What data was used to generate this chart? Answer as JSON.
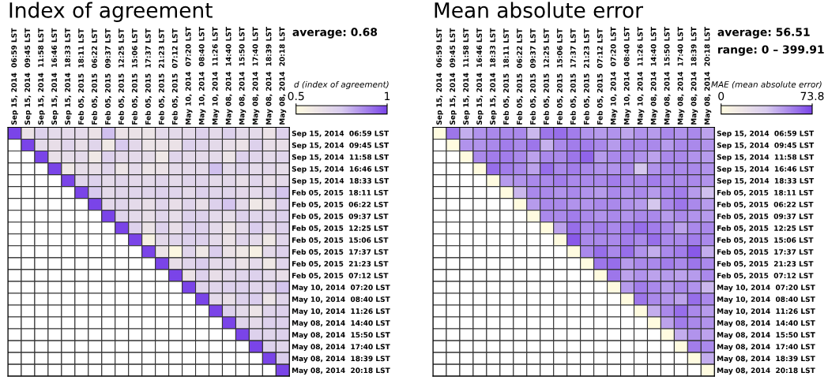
{
  "chart_data": [
    {
      "type": "heatmap",
      "title": "Index of agreement",
      "categories": [
        "Sep 15, 2014  06:59 LST",
        "Sep 15, 2014  09:45 LST",
        "Sep 15, 2014  11:58 LST",
        "Sep 15, 2014  16:46 LST",
        "Sep 15, 2014  18:33 LST",
        "Feb 05, 2015  18:11 LST",
        "Feb 05, 2015  06:22 LST",
        "Feb 05, 2015  09:37 LST",
        "Feb 05, 2015  12:25 LST",
        "Feb 05, 2015  15:06 LST",
        "Feb 05, 2015  17:37 LST",
        "Feb 05, 2015  21:23 LST",
        "Feb 05, 2015  07:12 LST",
        "May 10, 2014  07:20 LST",
        "May 10, 2014  08:40 LST",
        "May 10, 2014  11:26 LST",
        "May 08, 2014  14:40 LST",
        "May 08, 2014  15:50 LST",
        "May 08, 2014  17:40 LST",
        "May 08, 2014  18:39 LST",
        "May 08, 2014  20:18 LST"
      ],
      "y_categories": [
        "Sep 15, 2014  06:59 LST",
        "Sep 15, 2014  09:45 LST",
        "Sep 15, 2014  11:58 LST",
        "Sep 15, 2014  16:46 LST",
        "Sep 15, 2014  18:33 LST",
        "Feb 05, 2015  18:11 LST",
        "Feb 05, 2015  06:22 LST",
        "Feb 05, 2015  09:37 LST",
        "Feb 05, 2015  12:25 LST",
        "Feb 05, 2015  15:06 LST",
        "Feb 05, 2015  17:37 LST",
        "Feb 05, 2015  21:23 LST",
        "Feb 05, 2015  07:12 LST",
        "May 10, 2014  07:20 LST",
        "May 10, 2014  08:40 LST",
        "May 10, 2014  11:26 LST",
        "May 08, 2014  14:40 LST",
        "May 08, 2014  15:50 LST",
        "May 08, 2014  17:40 LST",
        "May 08, 2014  18:39 LST",
        "May 08, 2014  20:18 LST"
      ],
      "cells": [
        [
          1,
          0.63,
          0.72,
          0.67,
          0.67,
          0.67,
          0.63,
          0.77,
          0.63,
          0.63,
          0.62,
          0.67,
          0.67,
          0.67,
          0.72,
          0.67,
          0.72,
          0.67,
          0.67,
          0.63,
          0.72
        ],
        [
          null,
          1,
          0.67,
          0.65,
          0.7,
          0.65,
          0.7,
          0.6,
          0.75,
          0.68,
          0.62,
          0.63,
          0.63,
          0.72,
          0.7,
          0.67,
          0.65,
          0.63,
          0.72,
          0.65,
          0.65
        ],
        [
          null,
          null,
          1,
          0.64,
          0.66,
          0.67,
          0.6,
          0.72,
          0.68,
          0.67,
          0.66,
          0.6,
          0.7,
          0.67,
          0.67,
          0.67,
          0.62,
          0.72,
          0.7,
          0.67,
          0.7
        ],
        [
          null,
          null,
          null,
          1,
          0.6,
          0.66,
          0.65,
          0.7,
          0.62,
          0.67,
          0.62,
          0.63,
          0.67,
          0.67,
          0.67,
          0.77,
          0.67,
          0.7,
          0.67,
          0.68,
          0.66
        ],
        [
          null,
          null,
          null,
          null,
          1,
          0.7,
          0.72,
          0.67,
          0.7,
          0.68,
          0.67,
          0.7,
          0.67,
          0.7,
          0.7,
          0.67,
          0.68,
          0.65,
          0.7,
          0.65,
          0.67
        ],
        [
          null,
          null,
          null,
          null,
          null,
          1,
          0.75,
          0.67,
          0.7,
          0.7,
          0.7,
          0.72,
          0.7,
          0.67,
          0.72,
          0.7,
          0.7,
          0.68,
          0.67,
          0.7,
          0.76
        ],
        [
          null,
          null,
          null,
          null,
          null,
          null,
          1,
          0.68,
          0.7,
          0.67,
          0.65,
          0.7,
          0.65,
          0.7,
          0.65,
          0.72,
          0.76,
          0.67,
          0.6,
          0.63,
          0.72
        ],
        [
          null,
          null,
          null,
          null,
          null,
          null,
          null,
          1,
          0.7,
          0.67,
          0.65,
          0.7,
          0.66,
          0.72,
          0.72,
          0.67,
          0.66,
          0.72,
          0.7,
          0.7,
          0.72
        ],
        [
          null,
          null,
          null,
          null,
          null,
          null,
          null,
          null,
          1,
          0.72,
          0.63,
          0.72,
          0.65,
          0.72,
          0.72,
          0.67,
          0.62,
          0.67,
          0.74,
          0.67,
          0.72
        ],
        [
          null,
          null,
          null,
          null,
          null,
          null,
          null,
          null,
          null,
          1,
          0.55,
          0.68,
          0.7,
          0.72,
          0.72,
          0.67,
          0.63,
          0.7,
          0.67,
          0.6,
          0.7
        ],
        [
          null,
          null,
          null,
          null,
          null,
          null,
          null,
          null,
          null,
          null,
          1,
          0.62,
          0.52,
          0.7,
          0.6,
          0.74,
          0.63,
          0.6,
          0.56,
          0.67,
          0.72
        ],
        [
          null,
          null,
          null,
          null,
          null,
          null,
          null,
          null,
          null,
          null,
          null,
          1,
          0.65,
          0.7,
          0.74,
          0.67,
          0.67,
          0.63,
          0.67,
          0.6,
          0.7
        ],
        [
          null,
          null,
          null,
          null,
          null,
          null,
          null,
          null,
          null,
          null,
          null,
          null,
          1,
          0.63,
          0.72,
          0.65,
          0.68,
          0.7,
          0.72,
          0.67,
          0.65
        ],
        [
          null,
          null,
          null,
          null,
          null,
          null,
          null,
          null,
          null,
          null,
          null,
          null,
          null,
          1,
          0.7,
          0.7,
          0.72,
          0.72,
          0.7,
          0.7,
          0.76
        ],
        [
          null,
          null,
          null,
          null,
          null,
          null,
          null,
          null,
          null,
          null,
          null,
          null,
          null,
          null,
          1,
          0.67,
          0.65,
          0.72,
          0.74,
          0.62,
          0.7
        ],
        [
          null,
          null,
          null,
          null,
          null,
          null,
          null,
          null,
          null,
          null,
          null,
          null,
          null,
          null,
          null,
          1,
          0.72,
          0.67,
          0.62,
          0.7,
          0.72
        ],
        [
          null,
          null,
          null,
          null,
          null,
          null,
          null,
          null,
          null,
          null,
          null,
          null,
          null,
          null,
          null,
          null,
          1,
          0.7,
          0.67,
          0.72,
          0.72
        ],
        [
          null,
          null,
          null,
          null,
          null,
          null,
          null,
          null,
          null,
          null,
          null,
          null,
          null,
          null,
          null,
          null,
          null,
          1,
          0.72,
          0.7,
          0.72
        ],
        [
          null,
          null,
          null,
          null,
          null,
          null,
          null,
          null,
          null,
          null,
          null,
          null,
          null,
          null,
          null,
          null,
          null,
          null,
          1,
          0.72,
          0.7
        ],
        [
          null,
          null,
          null,
          null,
          null,
          null,
          null,
          null,
          null,
          null,
          null,
          null,
          null,
          null,
          null,
          null,
          null,
          null,
          null,
          1,
          0.74
        ],
        [
          null,
          null,
          null,
          null,
          null,
          null,
          null,
          null,
          null,
          null,
          null,
          null,
          null,
          null,
          null,
          null,
          null,
          null,
          null,
          null,
          1
        ]
      ],
      "clim": [
        0.5,
        1
      ],
      "cticks": [
        0.5,
        1
      ],
      "clabel": "d (index of agreement)",
      "annotations": [
        "average: 0.68"
      ]
    },
    {
      "type": "heatmap",
      "title": "Mean absolute error",
      "categories": [
        "Sep 15, 2014  06:59 LST",
        "Sep 15, 2014  09:45 LST",
        "Sep 15, 2014  11:58 LST",
        "Sep 15, 2014  16:46 LST",
        "Sep 15, 2014  18:33 LST",
        "Feb 05, 2015  18:11 LST",
        "Feb 05, 2015  06:22 LST",
        "Feb 05, 2015  09:37 LST",
        "Feb 05, 2015  12:25 LST",
        "Feb 05, 2015  15:06 LST",
        "Feb 05, 2015  17:37 LST",
        "Feb 05, 2015  21:23 LST",
        "Feb 05, 2015  07:12 LST",
        "May 10, 2014  07:20 LST",
        "May 10, 2014  08:40 LST",
        "May 10, 2014  11:26 LST",
        "May 08, 2014  14:40 LST",
        "May 08, 2014  15:50 LST",
        "May 08, 2014  17:40 LST",
        "May 08, 2014  18:39 LST",
        "May 08, 2014  20:18 LST"
      ],
      "y_categories": [
        "Sep 15, 2014  06:59 LST",
        "Sep 15, 2014  09:45 LST",
        "Sep 15, 2014  11:58 LST",
        "Sep 15, 2014  16:46 LST",
        "Sep 15, 2014  18:33 LST",
        "Feb 05, 2015  18:11 LST",
        "Feb 05, 2015  06:22 LST",
        "Feb 05, 2015  09:37 LST",
        "Feb 05, 2015  12:25 LST",
        "Feb 05, 2015  15:06 LST",
        "Feb 05, 2015  17:37 LST",
        "Feb 05, 2015  21:23 LST",
        "Feb 05, 2015  07:12 LST",
        "May 10, 2014  07:20 LST",
        "May 10, 2014  08:40 LST",
        "May 10, 2014  11:26 LST",
        "May 08, 2014  14:40 LST",
        "May 08, 2014  15:50 LST",
        "May 08, 2014  17:40 LST",
        "May 08, 2014  18:39 LST",
        "May 08, 2014  20:18 LST"
      ],
      "cells": [
        [
          0,
          60,
          45,
          52,
          55,
          55,
          55,
          42,
          60,
          62,
          58,
          52,
          50,
          52,
          47,
          52,
          50,
          55,
          52,
          55,
          48
        ],
        [
          null,
          0,
          52,
          52,
          55,
          58,
          55,
          60,
          44,
          55,
          58,
          58,
          55,
          50,
          55,
          55,
          55,
          50,
          55,
          55,
          52
        ],
        [
          null,
          null,
          0,
          55,
          58,
          58,
          55,
          48,
          55,
          55,
          60,
          65,
          50,
          55,
          55,
          52,
          48,
          55,
          55,
          52,
          50
        ],
        [
          null,
          null,
          null,
          0,
          62,
          58,
          55,
          48,
          62,
          55,
          58,
          55,
          52,
          52,
          55,
          38,
          52,
          55,
          55,
          55,
          52
        ],
        [
          null,
          null,
          null,
          null,
          0,
          50,
          52,
          55,
          55,
          58,
          55,
          55,
          55,
          58,
          55,
          55,
          58,
          55,
          55,
          55,
          52
        ],
        [
          null,
          null,
          null,
          null,
          null,
          0,
          42,
          55,
          55,
          52,
          55,
          52,
          50,
          55,
          52,
          55,
          50,
          55,
          58,
          50,
          40
        ],
        [
          null,
          null,
          null,
          null,
          null,
          null,
          0,
          50,
          55,
          55,
          52,
          52,
          55,
          55,
          52,
          50,
          38,
          55,
          60,
          55,
          50
        ],
        [
          null,
          null,
          null,
          null,
          null,
          null,
          null,
          0,
          55,
          55,
          58,
          55,
          52,
          55,
          52,
          55,
          55,
          50,
          55,
          52,
          50
        ],
        [
          null,
          null,
          null,
          null,
          null,
          null,
          null,
          null,
          0,
          48,
          62,
          55,
          58,
          55,
          58,
          62,
          58,
          55,
          48,
          55,
          55
        ],
        [
          null,
          null,
          null,
          null,
          null,
          null,
          null,
          null,
          null,
          0,
          68,
          55,
          55,
          55,
          58,
          55,
          62,
          55,
          55,
          58,
          55
        ],
        [
          null,
          null,
          null,
          null,
          null,
          null,
          null,
          null,
          null,
          null,
          0,
          55,
          62,
          55,
          62,
          52,
          45,
          55,
          58,
          68,
          45
        ],
        [
          null,
          null,
          null,
          null,
          null,
          null,
          null,
          null,
          null,
          null,
          null,
          0,
          60,
          62,
          50,
          55,
          55,
          58,
          55,
          60,
          55
        ],
        [
          null,
          null,
          null,
          null,
          null,
          null,
          null,
          null,
          null,
          null,
          null,
          null,
          0,
          60,
          48,
          52,
          48,
          50,
          48,
          50,
          55
        ],
        [
          null,
          null,
          null,
          null,
          null,
          null,
          null,
          null,
          null,
          null,
          null,
          null,
          null,
          0,
          50,
          58,
          55,
          50,
          55,
          52,
          42
        ],
        [
          null,
          null,
          null,
          null,
          null,
          null,
          null,
          null,
          null,
          null,
          null,
          null,
          null,
          null,
          0,
          60,
          55,
          52,
          48,
          62,
          55
        ],
        [
          null,
          null,
          null,
          null,
          null,
          null,
          null,
          null,
          null,
          null,
          null,
          null,
          null,
          null,
          null,
          0,
          45,
          55,
          62,
          55,
          50
        ],
        [
          null,
          null,
          null,
          null,
          null,
          null,
          null,
          null,
          null,
          null,
          null,
          null,
          null,
          null,
          null,
          null,
          0,
          48,
          58,
          55,
          52
        ],
        [
          null,
          null,
          null,
          null,
          null,
          null,
          null,
          null,
          null,
          null,
          null,
          null,
          null,
          null,
          null,
          null,
          null,
          0,
          45,
          52,
          48
        ],
        [
          null,
          null,
          null,
          null,
          null,
          null,
          null,
          null,
          null,
          null,
          null,
          null,
          null,
          null,
          null,
          null,
          null,
          null,
          0,
          58,
          55
        ],
        [
          null,
          null,
          null,
          null,
          null,
          null,
          null,
          null,
          null,
          null,
          null,
          null,
          null,
          null,
          null,
          null,
          null,
          null,
          null,
          0,
          45
        ],
        [
          null,
          null,
          null,
          null,
          null,
          null,
          null,
          null,
          null,
          null,
          null,
          null,
          null,
          null,
          null,
          null,
          null,
          null,
          null,
          null,
          0
        ]
      ],
      "clim": [
        0,
        73.8
      ],
      "cticks": [
        0,
        73.8
      ],
      "clabel": "MAE (mean absolute error)",
      "annotations": [
        "average: 56.51",
        "range: 0 – 399.91"
      ]
    }
  ]
}
